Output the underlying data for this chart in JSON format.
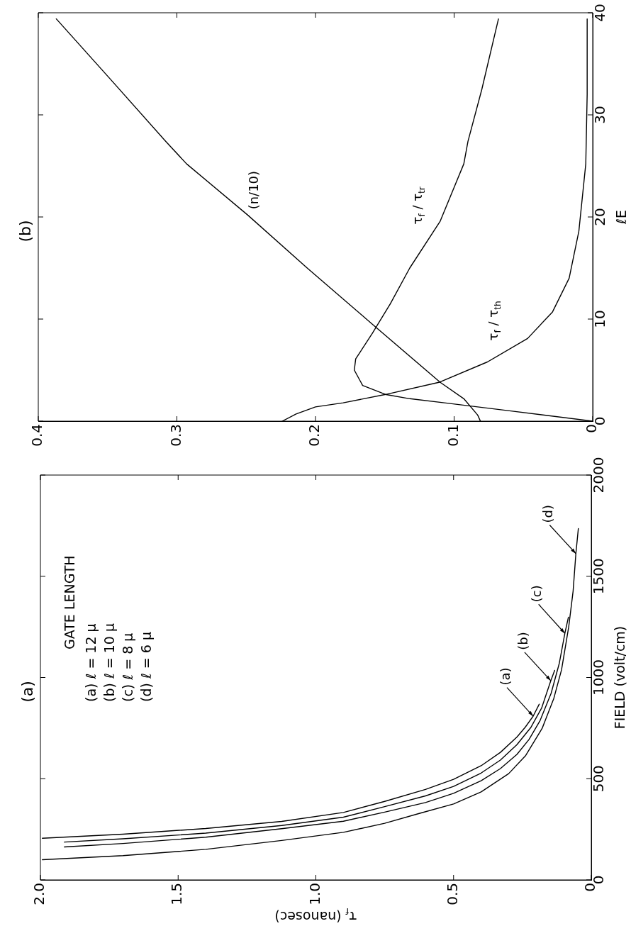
{
  "chart_data": [
    {
      "type": "line",
      "title": "(a)",
      "xlabel": "τ$_{f}$ (nanosec)",
      "ylabel": "FIELD (volt/cm)",
      "xlim": [
        2,
        0
      ],
      "xticks": [
        {
          "value": 2,
          "label": "2.0"
        },
        1.5,
        {
          "value": 1,
          "label": "1.0"
        },
        0.5,
        0
      ],
      "ylim": [
        0,
        2000
      ],
      "yticks": [
        0,
        500,
        1000,
        1500,
        2000
      ],
      "annotations": [
        "GATE LENGTH",
        "(a) ℓ = 12 μ",
        "(b) ℓ = 10 μ",
        "(c) ℓ = 8 μ",
        "(d) ℓ = 6 μ"
      ],
      "series": [
        {
          "name": "(a)",
          "color": "#000000",
          "x": [
            1.993,
            1.7,
            1.4,
            1.124,
            0.9,
            0.75,
            0.602,
            0.5,
            0.4,
            0.33,
            0.27,
            0.24,
            0.211,
            0.189
          ],
          "values": [
            206,
            226,
            254,
            289,
            333,
            388,
            447,
            497,
            564,
            630,
            706,
            754,
            809,
            868
          ]
        },
        {
          "name": "(b)",
          "color": "#000000",
          "x": [
            1.913,
            1.7,
            1.4,
            1.124,
            0.9,
            0.75,
            0.602,
            0.5,
            0.4,
            0.33,
            0.27,
            0.22,
            0.18,
            0.147,
            0.133
          ],
          "values": [
            187,
            203,
            231,
            269,
            310,
            362,
            415,
            462,
            528,
            592,
            668,
            752,
            850,
            984,
            1035
          ]
        },
        {
          "name": "(c)",
          "color": "#000000",
          "x": [
            1.913,
            1.7,
            1.4,
            1.124,
            0.9,
            0.75,
            0.602,
            0.5,
            0.4,
            0.33,
            0.27,
            0.226,
            0.186,
            0.146,
            0.116,
            0.096,
            0.083
          ],
          "values": [
            163,
            180,
            211,
            253,
            290,
            335,
            382,
            428,
            490,
            550,
            620,
            694,
            787,
            921,
            1071,
            1218,
            1298
          ]
        },
        {
          "name": "(d)",
          "color": "#000000",
          "x": [
            1.993,
            1.7,
            1.4,
            1.124,
            0.9,
            0.75,
            0.62,
            0.5,
            0.4,
            0.3,
            0.238,
            0.178,
            0.136,
            0.108,
            0.082,
            0.066,
            0.056,
            0.047
          ],
          "values": [
            100,
            120,
            151,
            195,
            235,
            280,
            330,
            375,
            435,
            525,
            615,
            750,
            897,
            1038,
            1250,
            1427,
            1612,
            1736
          ]
        }
      ]
    },
    {
      "type": "line",
      "title": "(b)",
      "ylabel": "ℓE",
      "xlim": [
        0.4,
        0
      ],
      "xticks": [
        0.4,
        0.3,
        0.2,
        0.1,
        0
      ],
      "ylim": [
        0,
        40
      ],
      "yticks": [
        0,
        10,
        20,
        30,
        40
      ],
      "series": [
        {
          "name": "(n/10)",
          "color": "#000000",
          "x": [
            0.081,
            0.083,
            0.093,
            0.11,
            0.159,
            0.206,
            0.249,
            0.293,
            0.308,
            0.348,
            0.387
          ],
          "values": [
            0,
            0.6,
            2.2,
            3.8,
            9.5,
            15,
            20.2,
            25.2,
            27.4,
            33.5,
            39.4
          ]
        },
        {
          "name": "τ$_{f}$ / τ$_{tr}$",
          "color": "#000000",
          "x": [
            0,
            0.059,
            0.107,
            0.132,
            0.149,
            0.166,
            0.172,
            0.171,
            0.159,
            0.146,
            0.132,
            0.11,
            0.093,
            0.09,
            0.08,
            0.068
          ],
          "values": [
            0,
            1,
            1.8,
            2.2,
            2.6,
            3.5,
            5,
            6.1,
            8.6,
            11.5,
            15,
            19.6,
            25.2,
            27.4,
            32.5,
            39.4
          ]
        },
        {
          "name": "τ$_{f}$ / τ$_{th}$",
          "color": "#000000",
          "x": [
            0.224,
            0.214,
            0.2,
            0.18,
            0.15,
            0.111,
            0.076,
            0.047,
            0.029,
            0.017,
            0.01,
            0.005,
            0.004,
            0.004
          ],
          "values": [
            0,
            0.7,
            1.4,
            1.8,
            2.6,
            3.8,
            5.8,
            8.1,
            10.7,
            14,
            18.6,
            25.2,
            32,
            39.4
          ]
        }
      ]
    }
  ]
}
